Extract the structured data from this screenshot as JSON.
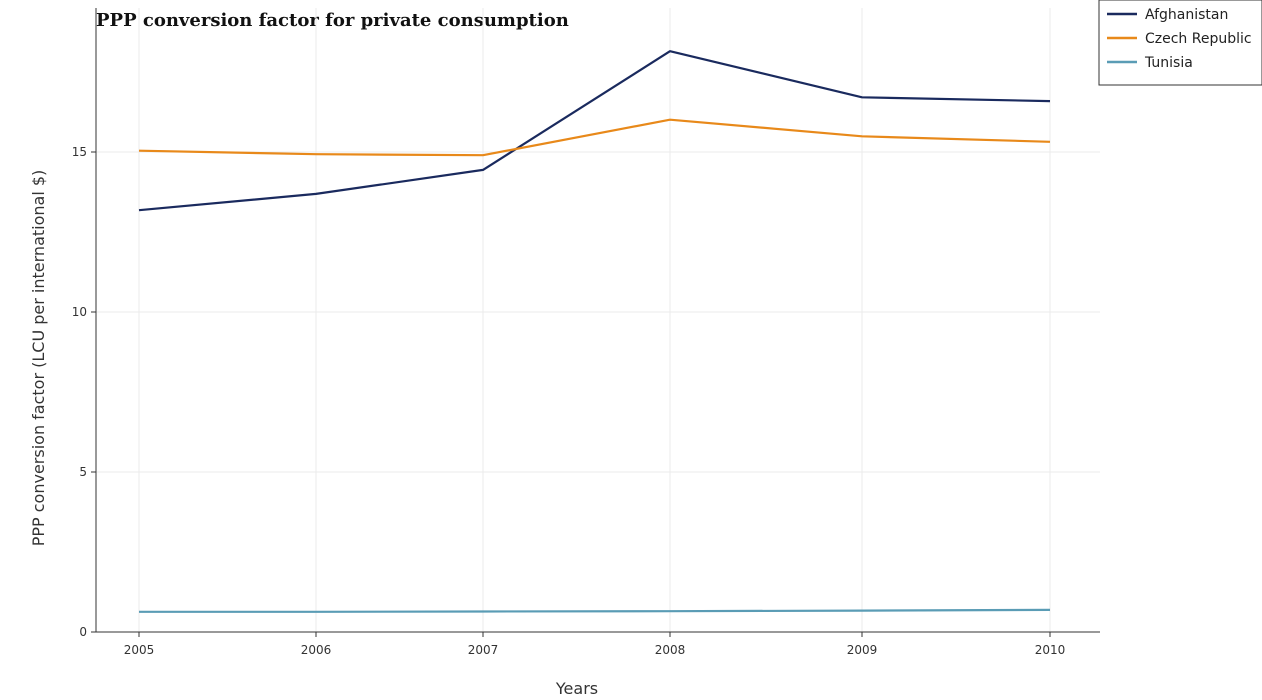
{
  "chart_data": {
    "type": "line",
    "title": "PPP conversion factor for private consumption",
    "xlabel": "Years",
    "ylabel": "PPP conversion factor (LCU per international $)",
    "categories": [
      "2005",
      "2006",
      "2007",
      "2008",
      "2009",
      "2010"
    ],
    "ylim": [
      0,
      19.5
    ],
    "yticks": [
      "0",
      "5",
      "10",
      "15"
    ],
    "grid": true,
    "legend_position": "top-right",
    "series": [
      {
        "name": "Afghanistan",
        "color": "#1a2a5e",
        "values": [
          13.18,
          13.69,
          14.44,
          18.15,
          16.71,
          16.59
        ]
      },
      {
        "name": "Czech Republic",
        "color": "#e8891a",
        "values": [
          15.04,
          14.93,
          14.9,
          16.01,
          15.49,
          15.32
        ]
      },
      {
        "name": "Tunisia",
        "color": "#5a9cb5",
        "values": [
          0.63,
          0.63,
          0.64,
          0.65,
          0.67,
          0.69
        ]
      }
    ]
  }
}
